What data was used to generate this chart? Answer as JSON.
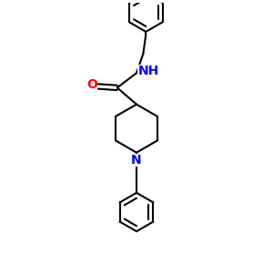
{
  "bg_color": "#ffffff",
  "bond_color": "#000000",
  "N_color": "#0000ff",
  "O_color": "#ff0000",
  "line_width": 1.5,
  "font_size": 8.5,
  "fig_size": [
    3.0,
    3.0
  ],
  "dpi": 100,
  "xlim": [
    0,
    10
  ],
  "ylim": [
    0,
    10
  ]
}
